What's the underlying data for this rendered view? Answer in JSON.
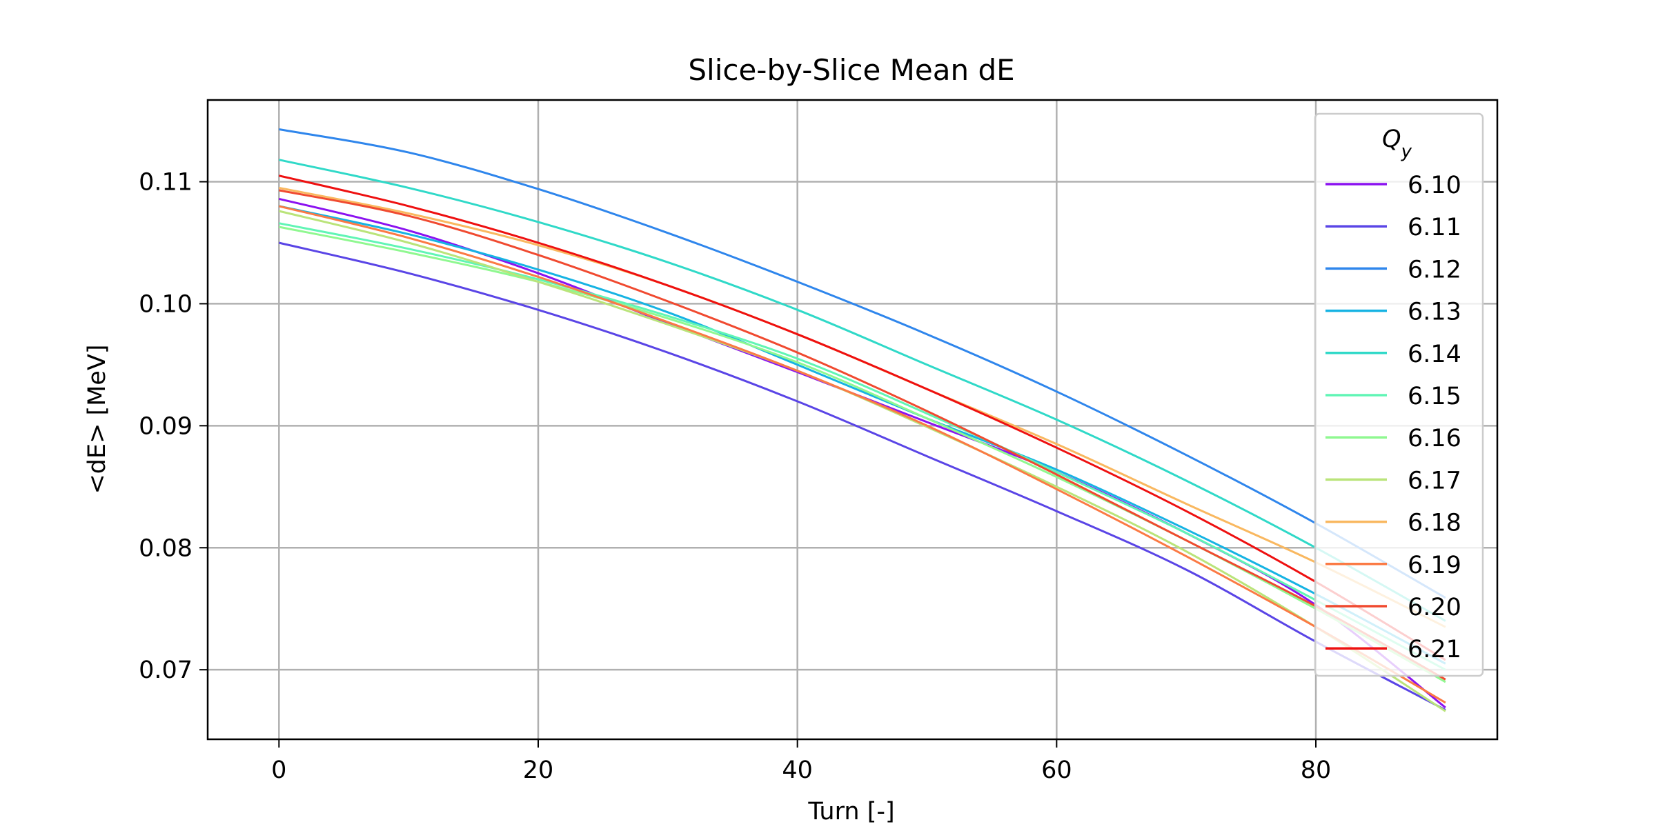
{
  "chart_data": {
    "type": "line",
    "title": "Slice-by-Slice Mean dE",
    "xlabel": "Turn [-]",
    "ylabel": "<dE> [MeV]",
    "xlim": [
      -5.5,
      94
    ],
    "ylim": [
      0.0643,
      0.1167
    ],
    "xticks": [
      0,
      20,
      40,
      60,
      80
    ],
    "yticks": [
      0.07,
      0.08,
      0.09,
      0.1,
      0.11
    ],
    "xtick_labels": [
      "0",
      "20",
      "40",
      "60",
      "80"
    ],
    "ytick_labels": [
      "0.07",
      "0.08",
      "0.09",
      "0.10",
      "0.11"
    ],
    "grid": true,
    "legend": {
      "title": "Q_y",
      "title_base": "Q",
      "title_sub": "y",
      "position": "top-right"
    },
    "x": [
      0,
      10,
      20,
      30,
      40,
      50,
      60,
      70,
      80,
      90
    ],
    "series": [
      {
        "name": "6.10",
        "color": "#8b12f0",
        "values": [
          0.1086,
          0.106,
          0.1025,
          0.0984,
          0.0944,
          0.0903,
          0.0862,
          0.0812,
          0.0753,
          0.0669
        ]
      },
      {
        "name": "6.11",
        "color": "#5a45e6",
        "values": [
          0.105,
          0.1025,
          0.0995,
          0.096,
          0.092,
          0.0875,
          0.083,
          0.0782,
          0.0723,
          0.0667
        ]
      },
      {
        "name": "6.12",
        "color": "#2f86ec",
        "values": [
          0.1143,
          0.1124,
          0.1094,
          0.1058,
          0.1018,
          0.0975,
          0.0928,
          0.0876,
          0.082,
          0.0759
        ]
      },
      {
        "name": "6.13",
        "color": "#16b3e3",
        "values": [
          0.108,
          0.1057,
          0.1028,
          0.0993,
          0.095,
          0.0906,
          0.0864,
          0.0815,
          0.0762,
          0.0705
        ]
      },
      {
        "name": "6.14",
        "color": "#30d9c8",
        "values": [
          0.1118,
          0.1095,
          0.1067,
          0.1034,
          0.0995,
          0.095,
          0.0905,
          0.0855,
          0.08,
          0.074
        ]
      },
      {
        "name": "6.15",
        "color": "#61f5b5",
        "values": [
          0.1066,
          0.1045,
          0.102,
          0.099,
          0.0955,
          0.091,
          0.0862,
          0.0812,
          0.0757,
          0.07
        ]
      },
      {
        "name": "6.16",
        "color": "#8ff890",
        "values": [
          0.1063,
          0.1042,
          0.1018,
          0.0988,
          0.0952,
          0.0906,
          0.0858,
          0.0806,
          0.075,
          0.069
        ]
      },
      {
        "name": "6.17",
        "color": "#bae47a",
        "values": [
          0.1076,
          0.105,
          0.1018,
          0.0983,
          0.0945,
          0.0899,
          0.085,
          0.0797,
          0.0735,
          0.0666
        ]
      },
      {
        "name": "6.18",
        "color": "#f9b860",
        "values": [
          0.1095,
          0.1074,
          0.1048,
          0.1015,
          0.0975,
          0.093,
          0.0885,
          0.0836,
          0.0788,
          0.0735
        ]
      },
      {
        "name": "6.19",
        "color": "#fb7a44",
        "values": [
          0.108,
          0.1054,
          0.1022,
          0.0985,
          0.0945,
          0.09,
          0.0848,
          0.0793,
          0.0735,
          0.0673
        ]
      },
      {
        "name": "6.20",
        "color": "#f04a30",
        "values": [
          0.1093,
          0.1072,
          0.104,
          0.1002,
          0.096,
          0.0912,
          0.086,
          0.0806,
          0.0752,
          0.0692
        ]
      },
      {
        "name": "6.21",
        "color": "#ee1010",
        "values": [
          0.1105,
          0.108,
          0.105,
          0.1015,
          0.0975,
          0.093,
          0.0882,
          0.083,
          0.0772,
          0.0708
        ]
      }
    ]
  }
}
